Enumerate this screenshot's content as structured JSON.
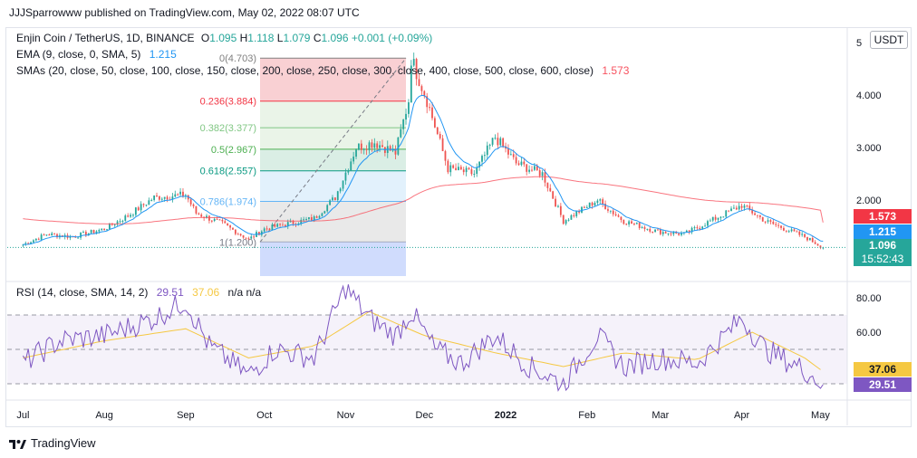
{
  "publisher": "JJJSparrowww published on TradingView.com, May 02, 2022 08:07 UTC",
  "currency_button": "USDT",
  "legend": {
    "symbol": "Enjin Coin / TetherUS, 1D, BINANCE",
    "ohlc": [
      {
        "k": "O",
        "v": "1.095"
      },
      {
        "k": "H",
        "v": "1.118"
      },
      {
        "k": "L",
        "v": "1.079"
      },
      {
        "k": "C",
        "v": "1.096"
      }
    ],
    "change": "+0.001 (+0.09%)",
    "ema_label": "EMA (9, close, 0, SMA, 5)",
    "ema_value": "1.215",
    "sma_label": "SMAs (20, close, 50, close, 100, close, 150, close, 200, close, 250, close, 300, close, 400, close, 500, close, 600, close)",
    "sma_value": "1.573",
    "rsi_label": "RSI (14, close, SMA, 14, 2)",
    "rsi_value": "29.51",
    "rsi_sma_value": "37.06",
    "rsi_na": "n/a  n/a"
  },
  "badges": {
    "sma": "1.573",
    "ema": "1.215",
    "price": "1.096",
    "countdown": "15:52:43",
    "rsi_sma": "37.06",
    "rsi": "29.51"
  },
  "footer": "TradingView",
  "colors": {
    "up": "#26a69a",
    "down": "#ef5350",
    "ema": "#2196f3",
    "sma": "#f7525f",
    "rsi": "#7e57c2",
    "rsi_sma": "#f5c842",
    "price_badge": "#26a69a"
  },
  "chart_data": [
    {
      "type": "candlestick",
      "title": "Enjin Coin / TetherUS, 1D, BINANCE",
      "x_ticks": [
        "Jul",
        "Aug",
        "Sep",
        "Oct",
        "Nov",
        "Dec",
        "2022",
        "Feb",
        "Mar",
        "Apr",
        "May"
      ],
      "y_ticks": [
        "5",
        "4.000",
        "3.000",
        "2.000"
      ],
      "ylim": [
        0.7,
        5.1
      ],
      "price_path": [
        [
          "Jul 1",
          1.15
        ],
        [
          "Jul 10",
          1.35
        ],
        [
          "Jul 20",
          1.3
        ],
        [
          "Aug 1",
          1.45
        ],
        [
          "Aug 10",
          1.7
        ],
        [
          "Aug 20",
          2.05
        ],
        [
          "Sep 1",
          2.1
        ],
        [
          "Sep 5",
          1.75
        ],
        [
          "Sep 15",
          1.55
        ],
        [
          "Sep 25",
          1.25
        ],
        [
          "Oct 1",
          1.45
        ],
        [
          "Oct 10",
          1.55
        ],
        [
          "Oct 20",
          1.65
        ],
        [
          "Oct 28",
          2.05
        ],
        [
          "Nov 5",
          3.0
        ],
        [
          "Nov 12",
          3.1
        ],
        [
          "Nov 20",
          2.9
        ],
        [
          "Nov 25",
          3.9
        ],
        [
          "Nov 26",
          4.7
        ],
        [
          "Dec 2",
          3.9
        ],
        [
          "Dec 10",
          2.6
        ],
        [
          "Dec 20",
          2.5
        ],
        [
          "Dec 28",
          3.2
        ],
        [
          "Jan 5",
          2.7
        ],
        [
          "Jan 15",
          2.5
        ],
        [
          "Jan 23",
          1.6
        ],
        [
          "Feb 5",
          2.0
        ],
        [
          "Feb 15",
          1.6
        ],
        [
          "Feb 28",
          1.4
        ],
        [
          "Mar 10",
          1.35
        ],
        [
          "Mar 20",
          1.6
        ],
        [
          "Apr 1",
          1.9
        ],
        [
          "Apr 10",
          1.6
        ],
        [
          "Apr 25",
          1.3
        ],
        [
          "May 2",
          1.096
        ]
      ],
      "ema_9_last": 1.215,
      "sma_last": 1.573,
      "last_close": 1.096,
      "fibonacci": [
        {
          "level": "0",
          "value": 4.703
        },
        {
          "level": "0.236",
          "value": 3.884
        },
        {
          "level": "0.382",
          "value": 3.377
        },
        {
          "level": "0.5",
          "value": 2.967
        },
        {
          "level": "0.618",
          "value": 2.557
        },
        {
          "level": "0.786",
          "value": 1.974
        },
        {
          "level": "1",
          "value": 1.2
        }
      ]
    },
    {
      "type": "line",
      "title": "RSI (14, close, SMA, 14, 2)",
      "y_ticks": [
        "80.00",
        "60.00"
      ],
      "ylim": [
        20,
        90
      ],
      "bands": [
        70,
        50,
        30
      ],
      "series": [
        {
          "name": "RSI",
          "last": 29.51,
          "values": [
            [
              "Jul 1",
              42
            ],
            [
              "Jul 15",
              55
            ],
            [
              "Aug 1",
              58
            ],
            [
              "Aug 20",
              68
            ],
            [
              "Sep 1",
              78
            ],
            [
              "Sep 10",
              52
            ],
            [
              "Sep 25",
              35
            ],
            [
              "Oct 5",
              50
            ],
            [
              "Oct 20",
              45
            ],
            [
              "Nov 1",
              86
            ],
            [
              "Nov 10",
              68
            ],
            [
              "Nov 20",
              58
            ],
            [
              "Nov 26",
              72
            ],
            [
              "Dec 5",
              50
            ],
            [
              "Dec 15",
              42
            ],
            [
              "Dec 28",
              58
            ],
            [
              "Jan 10",
              40
            ],
            [
              "Jan 23",
              30
            ],
            [
              "Feb 5",
              58
            ],
            [
              "Feb 15",
              40
            ],
            [
              "Mar 1",
              45
            ],
            [
              "Mar 15",
              42
            ],
            [
              "Apr 1",
              68
            ],
            [
              "Apr 10",
              50
            ],
            [
              "Apr 25",
              38
            ],
            [
              "May 2",
              29.51
            ]
          ]
        },
        {
          "name": "SMA",
          "last": 37.06,
          "values": [
            [
              "Jul 1",
              45
            ],
            [
              "Aug 1",
              55
            ],
            [
              "Sep 1",
              62
            ],
            [
              "Sep 25",
              45
            ],
            [
              "Oct 20",
              52
            ],
            [
              "Nov 10",
              72
            ],
            [
              "Dec 1",
              58
            ],
            [
              "Dec 28",
              48
            ],
            [
              "Jan 23",
              40
            ],
            [
              "Feb 15",
              48
            ],
            [
              "Mar 15",
              44
            ],
            [
              "Apr 5",
              60
            ],
            [
              "Apr 25",
              45
            ],
            [
              "May 2",
              37.06
            ]
          ]
        }
      ]
    }
  ]
}
